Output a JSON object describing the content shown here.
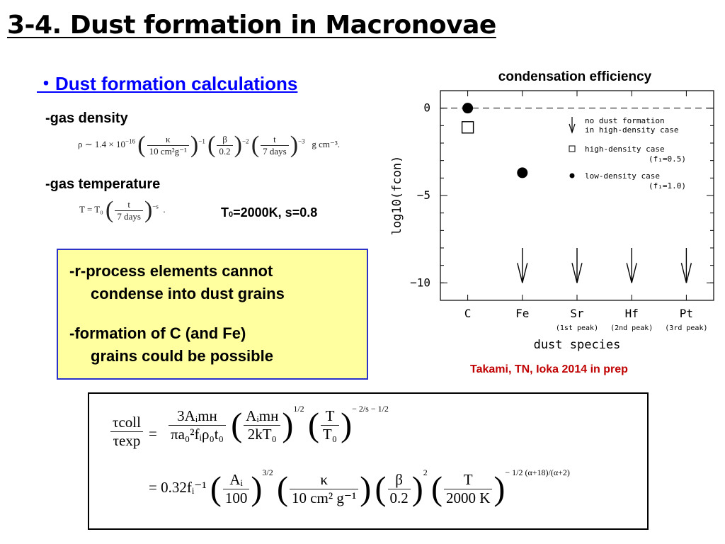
{
  "title": "3-4. Dust formation in Macronovae",
  "subtitle": "・Dust formation calculations",
  "gas_density": {
    "label": "-gas density",
    "formula": {
      "lhs": "ρ ∼ 1.4 × 10",
      "exp": "−16",
      "f1_num": "κ",
      "f1_den": "10 cm²g⁻¹",
      "f1_exp": "−1",
      "f2_num": "β",
      "f2_den": "0.2",
      "f2_exp": "−2",
      "f3_num": "t",
      "f3_den": "7 days",
      "f3_exp": "−3",
      "unit": "g cm⁻³."
    }
  },
  "gas_temperature": {
    "label": "-gas temperature",
    "formula": {
      "lhs": "T = T₀",
      "num": "t",
      "den": "7 days",
      "exp": "−s",
      "end": "."
    },
    "params_prefix": "T",
    "params_sub": "0",
    "params_rest": "=2000K, s=0.8"
  },
  "notes": {
    "item1_line1": "-r-process elements cannot",
    "item1_line2": "condense into dust grains",
    "item2_line1": "-formation of C (and Fe)",
    "item2_line2": "grains could be possible"
  },
  "credit": "Takami, TN, Ioka 2014  in prep",
  "equation": {
    "lhs_num": "τcoll",
    "lhs_den": "τexp",
    "row1_coef_num": "3Aᵢmʜ",
    "row1_coef_den": "πa₀²fᵢρ₀t₀",
    "row1_f2_num": "Aᵢmʜ",
    "row1_f2_den": "2kT₀",
    "row1_f2_exp": "1/2",
    "row1_f3_num": "T",
    "row1_f3_den": "T₀",
    "row1_f3_exp": "− 2/s − 1/2",
    "row2_coef": "= 0.32fᵢ⁻¹",
    "row2_f1_num": "Aᵢ",
    "row2_f1_den": "100",
    "row2_f1_exp": "3/2",
    "row2_f2_num": "κ",
    "row2_f2_den": "10 cm² g⁻¹",
    "row2_f3_num": "β",
    "row2_f3_den": "0.2",
    "row2_f3_exp": "2",
    "row2_f4_num": "T",
    "row2_f4_den": "2000 K",
    "row2_f4_exp": "− 1/2 (α+18)/(α+2)"
  },
  "chart_data": {
    "type": "scatter",
    "title": "condensation efficiency",
    "xlabel": "dust species",
    "ylabel": "log10(fcon)",
    "categories": [
      "C",
      "Fe",
      "Sr",
      "Hf",
      "Pt"
    ],
    "category_sublabels": [
      "",
      "",
      "(1st peak)",
      "(2nd peak)",
      "(3rd peak)"
    ],
    "yticks": [
      "0",
      "−5",
      "−10"
    ],
    "ylim": [
      -11,
      1
    ],
    "series": [
      {
        "name": "high-density case",
        "sublabel": "(f₁=0.5)",
        "marker": "open-square",
        "x": [
          "C"
        ],
        "values": [
          -1.1
        ]
      },
      {
        "name": "low-density case",
        "sublabel": "(f₁=1.0)",
        "marker": "filled-circle",
        "x": [
          "C",
          "Fe"
        ],
        "values": [
          0,
          -3.7
        ]
      },
      {
        "name": "no dust formation in high-density case",
        "marker": "down-arrow",
        "x": [
          "Fe",
          "Sr",
          "Hf",
          "Pt"
        ],
        "values": [
          null,
          null,
          null,
          null
        ]
      }
    ],
    "legend_lines": {
      "arrow": [
        "no dust formation",
        "in high-density case"
      ],
      "square": [
        "high-density case",
        "(f₁=0.5)"
      ],
      "circle": [
        "low-density case",
        "(f₁=1.0)"
      ]
    },
    "dashed_reference_y": 0,
    "legend_position": "top-right"
  }
}
